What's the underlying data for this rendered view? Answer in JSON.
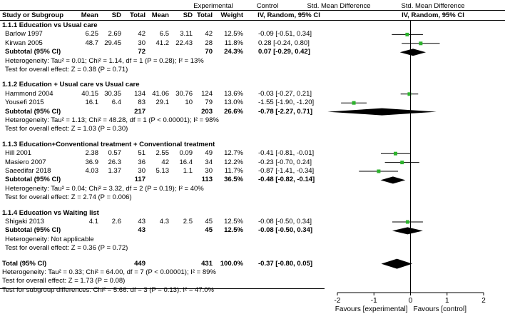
{
  "header": {
    "experimental": "Experimental",
    "control": "Control",
    "smd_title_left": "Std. Mean Difference",
    "smd_title_right": "Std. Mean Difference",
    "col_study": "Study or Subgroup",
    "col_mean": "Mean",
    "col_sd": "SD",
    "col_total": "Total",
    "col_weight": "Weight",
    "col_ci_left": "IV, Random, 95% CI",
    "col_ci_right": "IV, Random, 95% CI"
  },
  "groups": [
    {
      "title": "1.1.1 Education vs Usual care",
      "studies": [
        {
          "name": "Barlow 1997",
          "e_mean": "6.25",
          "e_sd": "2.69",
          "e_total": "42",
          "c_mean": "6.5",
          "c_sd": "3.11",
          "c_total": "42",
          "weight": "12.5%",
          "ci": "-0.09 [-0.51, 0.34]",
          "est": -0.09,
          "lo": -0.51,
          "hi": 0.34
        },
        {
          "name": "Kirwan 2005",
          "e_mean": "48.7",
          "e_sd": "29.45",
          "e_total": "30",
          "c_mean": "41.2",
          "c_sd": "22.43",
          "c_total": "28",
          "weight": "11.8%",
          "ci": "0.28 [-0.24, 0.80]",
          "est": 0.28,
          "lo": -0.24,
          "hi": 0.8
        }
      ],
      "subtotal": {
        "label": "Subtotal (95% CI)",
        "e_total": "72",
        "c_total": "70",
        "weight": "24.3%",
        "ci": "0.07 [-0.29, 0.42]",
        "est": 0.07,
        "lo": -0.29,
        "hi": 0.42
      },
      "heterogeneity": "Heterogeneity: Tau² = 0.01; Chi² = 1.14, df = 1 (P = 0.28); I² = 13%",
      "overall": "Test for overall effect: Z = 0.38 (P = 0.71)"
    },
    {
      "title": "1.1.2 Education + Usual care vs Usual care",
      "studies": [
        {
          "name": "Hammond 2004",
          "e_mean": "40.15",
          "e_sd": "30.35",
          "e_total": "134",
          "c_mean": "41.06",
          "c_sd": "30.76",
          "c_total": "124",
          "weight": "13.6%",
          "ci": "-0.03 [-0.27, 0.21]",
          "est": -0.03,
          "lo": -0.27,
          "hi": 0.21
        },
        {
          "name": "Yousefi 2015",
          "e_mean": "16.1",
          "e_sd": "6.4",
          "e_total": "83",
          "c_mean": "29.1",
          "c_sd": "10",
          "c_total": "79",
          "weight": "13.0%",
          "ci": "-1.55 [-1.90, -1.20]",
          "est": -1.55,
          "lo": -1.9,
          "hi": -1.2
        }
      ],
      "subtotal": {
        "label": "Subtotal (95% CI)",
        "e_total": "217",
        "c_total": "203",
        "weight": "26.6%",
        "ci": "-0.78 [-2.27, 0.71]",
        "est": -0.78,
        "lo": -2.27,
        "hi": 0.71
      },
      "heterogeneity": "Heterogeneity: Tau² = 1.13; Chi² = 48.28, df = 1 (P < 0.00001); I² = 98%",
      "overall": "Test for overall effect: Z = 1.03 (P = 0.30)"
    },
    {
      "title": "1.1.3 Education+Conventional treatment + Conventional treatment",
      "studies": [
        {
          "name": "Hill 2001",
          "e_mean": "2.38",
          "e_sd": "0.57",
          "e_total": "51",
          "c_mean": "2.55",
          "c_sd": "0.09",
          "c_total": "49",
          "weight": "12.7%",
          "ci": "-0.41 [-0.81, -0.01]",
          "est": -0.41,
          "lo": -0.81,
          "hi": -0.01
        },
        {
          "name": "Masiero 2007",
          "e_mean": "36.9",
          "e_sd": "26.3",
          "e_total": "36",
          "c_mean": "42",
          "c_sd": "16.4",
          "c_total": "34",
          "weight": "12.2%",
          "ci": "-0.23 [-0.70, 0.24]",
          "est": -0.23,
          "lo": -0.7,
          "hi": 0.24
        },
        {
          "name": "Saeedifar 2018",
          "e_mean": "4.03",
          "e_sd": "1.37",
          "e_total": "30",
          "c_mean": "5.13",
          "c_sd": "1.1",
          "c_total": "30",
          "weight": "11.7%",
          "ci": "-0.87 [-1.41, -0.34]",
          "est": -0.87,
          "lo": -1.41,
          "hi": -0.34
        }
      ],
      "subtotal": {
        "label": "Subtotal (95% CI)",
        "e_total": "117",
        "c_total": "113",
        "weight": "36.5%",
        "ci": "-0.48 [-0.82, -0.14]",
        "est": -0.48,
        "lo": -0.82,
        "hi": -0.14
      },
      "heterogeneity": "Heterogeneity: Tau² = 0.04; Chi² = 3.32, df = 2 (P = 0.19); I² = 40%",
      "overall": "Test for overall effect: Z = 2.74 (P = 0.006)"
    },
    {
      "title": "1.1.4 Education vs Waiting list",
      "studies": [
        {
          "name": "Shigaki 2013",
          "e_mean": "4.1",
          "e_sd": "2.6",
          "e_total": "43",
          "c_mean": "4.3",
          "c_sd": "2.5",
          "c_total": "45",
          "weight": "12.5%",
          "ci": "-0.08 [-0.50, 0.34]",
          "est": -0.08,
          "lo": -0.5,
          "hi": 0.34
        }
      ],
      "subtotal": {
        "label": "Subtotal (95% CI)",
        "e_total": "43",
        "c_total": "45",
        "weight": "12.5%",
        "ci": "-0.08 [-0.50, 0.34]",
        "est": -0.08,
        "lo": -0.5,
        "hi": 0.34
      },
      "heterogeneity": "Heterogeneity: Not applicable",
      "overall": "Test for overall effect: Z = 0.36 (P = 0.72)"
    }
  ],
  "total": {
    "label": "Total (95% CI)",
    "e_total": "449",
    "c_total": "431",
    "weight": "100.0%",
    "ci": "-0.37 [-0.80, 0.05]",
    "est": -0.37,
    "lo": -0.8,
    "hi": 0.05
  },
  "footer": {
    "heterogeneity": "Heterogeneity: Tau² = 0.33; Chi² = 64.00, df = 7 (P < 0.00001); I² = 89%",
    "overall": "Test for overall effect: Z = 1.73 (P = 0.08)",
    "subgroup": "Test for subgroup differences: Chi² = 5.66. df = 3 (P = 0.13). I² = 47.0%"
  },
  "chart_data": {
    "type": "forest",
    "xlim": [
      -2,
      2
    ],
    "ticks": [
      -2,
      -1,
      0,
      1,
      2
    ],
    "tick_labels": [
      "-2",
      "-1",
      "0",
      "1",
      "2"
    ],
    "favours_left": "Favours [experimental]",
    "favours_right": "Favours [control]",
    "colors": {
      "square": "#2db32d",
      "line": "#000000",
      "diamond": "#000000"
    }
  }
}
